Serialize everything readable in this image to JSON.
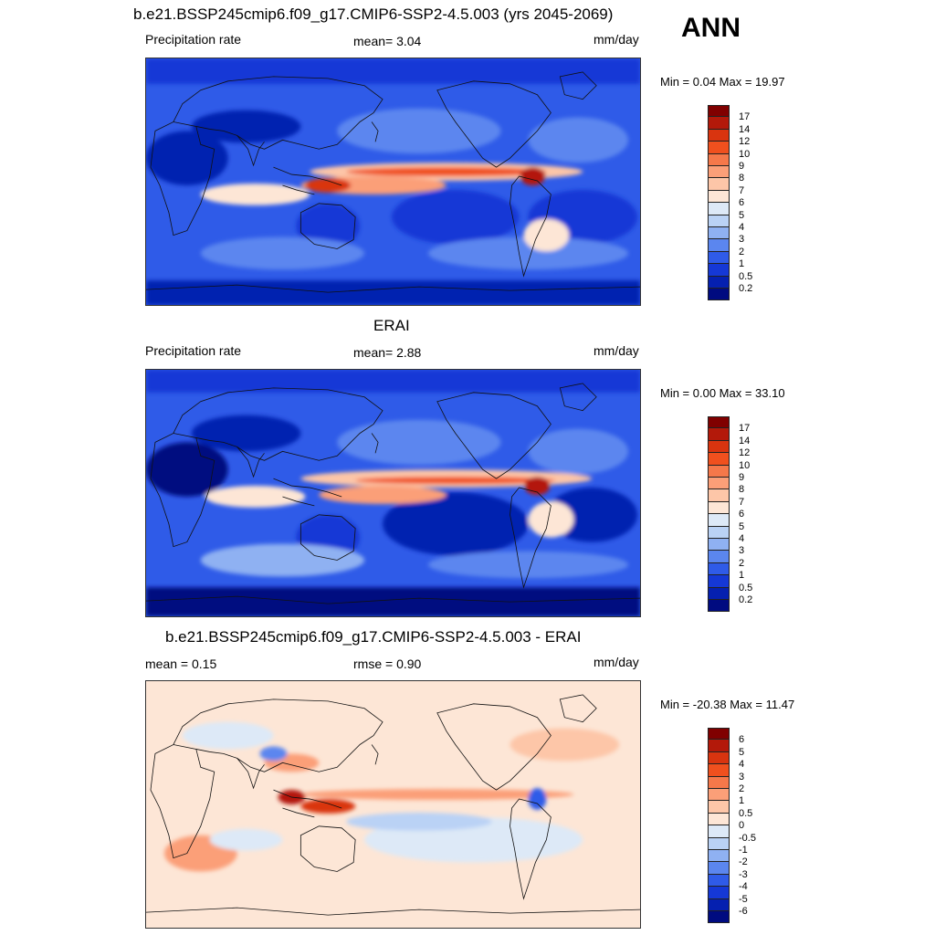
{
  "header": {
    "title": "b.e21.BSSP245cmip6.f09_g17.CMIP6-SSP2-4.5.003 (yrs 2045-2069)",
    "season": "ANN"
  },
  "panels": [
    {
      "title": "",
      "left_label": "Precipitation rate",
      "center_label": "mean=   3.04",
      "units": "mm/day",
      "minmax": "Min =   0.04 Max =  19.97",
      "cbar_labels": [
        "17",
        "14",
        "12",
        "10",
        "9",
        "8",
        "7",
        "6",
        "5",
        "4",
        "3",
        "2",
        "1",
        "0.5",
        "0.2"
      ],
      "cbar_colors": [
        "#800000",
        "#b3190a",
        "#d9340f",
        "#f0501e",
        "#f5784a",
        "#fb9f78",
        "#fdc6a8",
        "#fde6d6",
        "#dde9f7",
        "#bad2f5",
        "#8fb1f2",
        "#5b86ef",
        "#2f5be8",
        "#1538d6",
        "#0520b0",
        "#000b80"
      ]
    },
    {
      "title": "ERAI",
      "left_label": "Precipitation rate",
      "center_label": "mean=   2.88",
      "units": "mm/day",
      "minmax": "Min =   0.00 Max =  33.10",
      "cbar_labels": [
        "17",
        "14",
        "12",
        "10",
        "9",
        "8",
        "7",
        "6",
        "5",
        "4",
        "3",
        "2",
        "1",
        "0.5",
        "0.2"
      ],
      "cbar_colors": [
        "#800000",
        "#b3190a",
        "#d9340f",
        "#f0501e",
        "#f5784a",
        "#fb9f78",
        "#fdc6a8",
        "#fde6d6",
        "#dde9f7",
        "#bad2f5",
        "#8fb1f2",
        "#5b86ef",
        "#2f5be8",
        "#1538d6",
        "#0520b0",
        "#000b80"
      ]
    },
    {
      "title": "b.e21.BSSP245cmip6.f09_g17.CMIP6-SSP2-4.5.003 - ERAI",
      "left_label": "mean =   0.15",
      "center_label": "rmse =   0.90",
      "units": "mm/day",
      "minmax": "Min = -20.38 Max =  11.47",
      "cbar_labels": [
        "6",
        "5",
        "4",
        "3",
        "2",
        "1",
        "0.5",
        "0",
        "-0.5",
        "-1",
        "-2",
        "-3",
        "-4",
        "-5",
        "-6"
      ],
      "cbar_colors": [
        "#800000",
        "#b3190a",
        "#d9340f",
        "#f0501e",
        "#f5784a",
        "#fb9f78",
        "#fdc6a8",
        "#fde6d6",
        "#dde9f7",
        "#bad2f5",
        "#8fb1f2",
        "#5b86ef",
        "#2f5be8",
        "#1538d6",
        "#0520b0",
        "#000b80"
      ]
    }
  ]
}
